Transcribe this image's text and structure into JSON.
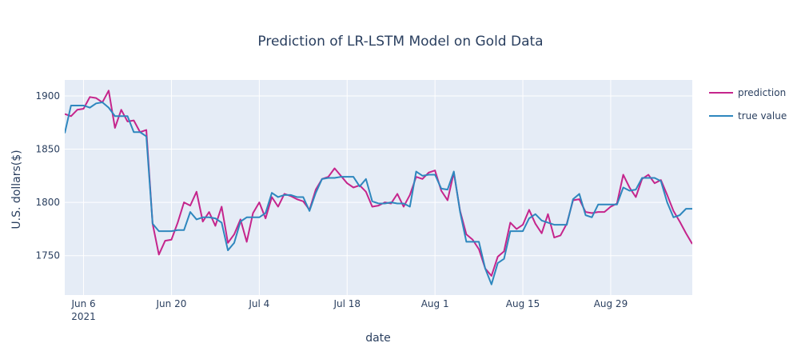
{
  "chart_data": {
    "type": "line",
    "title": "Prediction of LR-LSTM Model on Gold Data",
    "xlabel": "date",
    "ylabel": "U.S. dollars($)",
    "x_ticks": [
      {
        "date": "2021-06-06",
        "label": "Jun 6",
        "sublabel": "2021"
      },
      {
        "date": "2021-06-20",
        "label": "Jun 20",
        "sublabel": ""
      },
      {
        "date": "2021-07-04",
        "label": "Jul 4",
        "sublabel": ""
      },
      {
        "date": "2021-07-18",
        "label": "Jul 18",
        "sublabel": ""
      },
      {
        "date": "2021-08-01",
        "label": "Aug 1",
        "sublabel": ""
      },
      {
        "date": "2021-08-15",
        "label": "Aug 15",
        "sublabel": ""
      },
      {
        "date": "2021-08-29",
        "label": "Aug 29",
        "sublabel": ""
      }
    ],
    "y_ticks": [
      1750,
      1800,
      1850,
      1900
    ],
    "xlim": [
      "2021-06-03",
      "2021-09-11"
    ],
    "ylim": [
      1713,
      1915
    ],
    "grid": true,
    "legend_position": "top-right",
    "x": [
      "2021-06-03",
      "2021-06-04",
      "2021-06-05",
      "2021-06-06",
      "2021-06-07",
      "2021-06-08",
      "2021-06-09",
      "2021-06-10",
      "2021-06-11",
      "2021-06-12",
      "2021-06-13",
      "2021-06-14",
      "2021-06-15",
      "2021-06-16",
      "2021-06-17",
      "2021-06-18",
      "2021-06-19",
      "2021-06-20",
      "2021-06-21",
      "2021-06-22",
      "2021-06-23",
      "2021-06-24",
      "2021-06-25",
      "2021-06-26",
      "2021-06-27",
      "2021-06-28",
      "2021-06-29",
      "2021-06-30",
      "2021-07-01",
      "2021-07-02",
      "2021-07-03",
      "2021-07-04",
      "2021-07-05",
      "2021-07-06",
      "2021-07-07",
      "2021-07-08",
      "2021-07-09",
      "2021-07-10",
      "2021-07-11",
      "2021-07-12",
      "2021-07-13",
      "2021-07-14",
      "2021-07-15",
      "2021-07-16",
      "2021-07-17",
      "2021-07-18",
      "2021-07-19",
      "2021-07-20",
      "2021-07-21",
      "2021-07-22",
      "2021-07-23",
      "2021-07-24",
      "2021-07-25",
      "2021-07-26",
      "2021-07-27",
      "2021-07-28",
      "2021-07-29",
      "2021-07-30",
      "2021-07-31",
      "2021-08-01",
      "2021-08-02",
      "2021-08-03",
      "2021-08-04",
      "2021-08-05",
      "2021-08-06",
      "2021-08-07",
      "2021-08-08",
      "2021-08-09",
      "2021-08-10",
      "2021-08-11",
      "2021-08-12",
      "2021-08-13",
      "2021-08-14",
      "2021-08-15",
      "2021-08-16",
      "2021-08-17",
      "2021-08-18",
      "2021-08-19",
      "2021-08-20",
      "2021-08-21",
      "2021-08-22",
      "2021-08-23",
      "2021-08-24",
      "2021-08-25",
      "2021-08-26",
      "2021-08-27",
      "2021-08-28",
      "2021-08-29",
      "2021-08-30",
      "2021-08-31",
      "2021-09-01",
      "2021-09-02",
      "2021-09-03",
      "2021-09-04",
      "2021-09-05",
      "2021-09-06",
      "2021-09-07",
      "2021-09-08",
      "2021-09-09",
      "2021-09-10",
      "2021-09-11"
    ],
    "series": [
      {
        "name": "prediction",
        "color": "#c5258c",
        "values": [
          1883,
          1881,
          1887,
          1888,
          1899,
          1898,
          1894,
          1905,
          1870,
          1887,
          1876,
          1877,
          1866,
          1868,
          1780,
          1751,
          1764,
          1765,
          1781,
          1800,
          1797,
          1810,
          1782,
          1791,
          1778,
          1796,
          1762,
          1770,
          1784,
          1763,
          1790,
          1800,
          1785,
          1805,
          1796,
          1808,
          1806,
          1803,
          1801,
          1793,
          1812,
          1822,
          1824,
          1832,
          1825,
          1818,
          1814,
          1816,
          1810,
          1796,
          1797,
          1800,
          1799,
          1808,
          1796,
          1807,
          1824,
          1822,
          1828,
          1830,
          1811,
          1802,
          1828,
          1792,
          1770,
          1765,
          1756,
          1738,
          1731,
          1749,
          1754,
          1781,
          1775,
          1779,
          1793,
          1780,
          1771,
          1789,
          1767,
          1769,
          1780,
          1802,
          1803,
          1791,
          1790,
          1791,
          1791,
          1796,
          1799,
          1826,
          1814,
          1805,
          1822,
          1826,
          1818,
          1821,
          1807,
          1792,
          1782,
          1771,
          1761
        ]
      },
      {
        "name": "true value",
        "color": "#2e87be",
        "values": [
          1865,
          1891,
          1891,
          1891,
          1889,
          1893,
          1894,
          1889,
          1881,
          1881,
          1881,
          1866,
          1866,
          1862,
          1780,
          1773,
          1773,
          1773,
          1774,
          1774,
          1791,
          1784,
          1786,
          1786,
          1785,
          1781,
          1755,
          1762,
          1782,
          1786,
          1786,
          1786,
          1790,
          1809,
          1805,
          1807,
          1807,
          1805,
          1805,
          1792,
          1809,
          1822,
          1823,
          1823,
          1824,
          1824,
          1824,
          1815,
          1822,
          1801,
          1799,
          1799,
          1800,
          1799,
          1799,
          1796,
          1829,
          1825,
          1826,
          1826,
          1813,
          1812,
          1829,
          1791,
          1763,
          1763,
          1763,
          1738,
          1723,
          1743,
          1747,
          1773,
          1773,
          1773,
          1785,
          1789,
          1783,
          1781,
          1779,
          1779,
          1779,
          1803,
          1808,
          1788,
          1786,
          1798,
          1798,
          1798,
          1798,
          1814,
          1811,
          1812,
          1823,
          1823,
          1823,
          1820,
          1800,
          1786,
          1788,
          1794,
          1794
        ]
      }
    ]
  }
}
